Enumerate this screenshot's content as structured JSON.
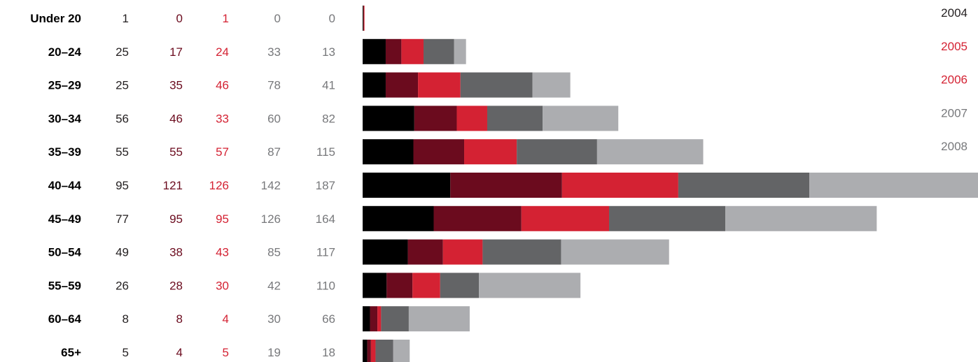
{
  "chart_data": {
    "type": "bar",
    "stacked": true,
    "orientation": "horizontal",
    "categories": [
      "Under 20",
      "20–24",
      "25–29",
      "30–34",
      "35–39",
      "40–44",
      "45–49",
      "50–54",
      "55–59",
      "60–64",
      "65+"
    ],
    "series": [
      {
        "name": "2004",
        "color": "#000000",
        "values": [
          1,
          25,
          25,
          56,
          55,
          95,
          77,
          49,
          26,
          8,
          5
        ]
      },
      {
        "name": "2005",
        "color": "#6b0b1e",
        "values": [
          0,
          17,
          35,
          46,
          55,
          121,
          95,
          38,
          28,
          8,
          4
        ]
      },
      {
        "name": "2006",
        "color": "#d42233",
        "values": [
          1,
          24,
          46,
          33,
          57,
          126,
          95,
          43,
          30,
          4,
          5
        ]
      },
      {
        "name": "2007",
        "color": "#636466",
        "values": [
          0,
          33,
          78,
          60,
          87,
          142,
          126,
          85,
          42,
          30,
          19
        ]
      },
      {
        "name": "2008",
        "color": "#acadb0",
        "values": [
          0,
          13,
          41,
          82,
          115,
          187,
          164,
          117,
          110,
          66,
          18
        ]
      }
    ],
    "value_text_colors": [
      "#231f20",
      "#6b0b1e",
      "#d42233",
      "#77787b",
      "#77787b"
    ],
    "legend_text_colors": [
      "#231f20",
      "#d42233",
      "#d42233",
      "#77787b",
      "#77787b"
    ],
    "legend_position": "right",
    "grid": false,
    "xlabel": "",
    "ylabel": ""
  }
}
